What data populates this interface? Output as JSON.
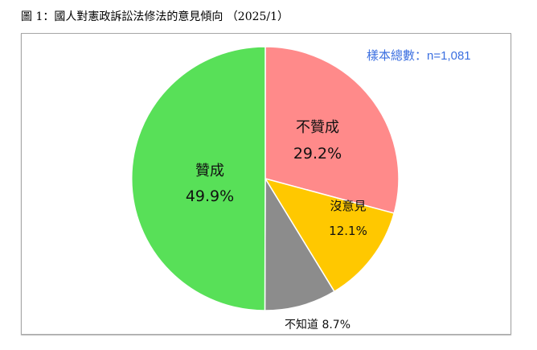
{
  "title": "圖 1：國人對憲政訴訟法修法的意見傾向 （2025/1）",
  "sample_note": "樣本總數：n=1,081",
  "chart_data": {
    "type": "pie",
    "title": "國人對憲政訴訟法修法的意見傾向 (2025/1)",
    "categories": [
      "不贊成",
      "沒意見",
      "不知道",
      "贊成"
    ],
    "values": [
      29.2,
      12.1,
      8.7,
      49.9
    ],
    "colors": [
      "#ff8a8a",
      "#ffc800",
      "#8c8c8c",
      "#58e058"
    ],
    "unit": "%",
    "start_angle": "12 o'clock, clockwise",
    "annotation": "樣本總數：n=1,081"
  },
  "labels": {
    "disagree": {
      "name": "不贊成",
      "value": "29.2%"
    },
    "no_opinion": {
      "name": "沒意見",
      "value": "12.1%"
    },
    "unknown": {
      "name": "不知道",
      "value": "8.7%"
    },
    "agree": {
      "name": "贊成",
      "value": "49.9%"
    }
  }
}
